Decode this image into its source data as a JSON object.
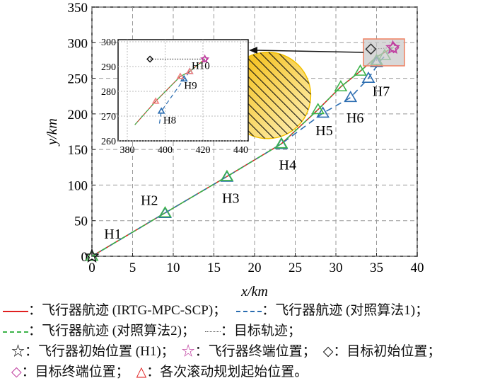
{
  "chart_data": {
    "type": "line",
    "xlabel": "x/km",
    "ylabel": "y/km",
    "xlim": [
      0,
      40
    ],
    "ylim": [
      0,
      350
    ],
    "xticks": [
      0,
      5,
      10,
      15,
      20,
      25,
      30,
      35,
      40
    ],
    "yticks": [
      0,
      50,
      100,
      150,
      200,
      250,
      300,
      350
    ],
    "grid": true,
    "series": [
      {
        "legend": "飞行器航迹 (IRTG-MPC-SCP)",
        "color": "#e02020",
        "style": "solid",
        "x": [
          0,
          9,
          16.6,
          23.3,
          27.8,
          30.6,
          33,
          35,
          37
        ],
        "y": [
          0,
          61,
          112,
          158,
          206,
          238,
          260,
          280,
          293
        ]
      },
      {
        "legend": "飞行器航迹 (对照算法1)",
        "color": "#2a6cb0",
        "style": "dashed",
        "x": [
          0,
          9,
          16.6,
          23.3,
          28.4,
          31.8,
          34,
          35.5,
          37
        ],
        "y": [
          0,
          61,
          112,
          158,
          201,
          223,
          250,
          275,
          293
        ]
      },
      {
        "legend": "飞行器航迹 (对照算法2)",
        "color": "#3cb34a",
        "style": "dashdot",
        "x": [
          0,
          9,
          16.6,
          23.3,
          27.8,
          30.6,
          33,
          35,
          37
        ],
        "y": [
          0,
          61,
          112,
          158,
          206,
          238,
          260,
          280,
          293
        ]
      },
      {
        "legend": "目标轨迹",
        "color": "#333333",
        "style": "dotted",
        "x": [
          34.3,
          37.1
        ],
        "y": [
          291,
          293
        ]
      }
    ],
    "horizon_points": {
      "green": [
        [
          0,
          0
        ],
        [
          9,
          61
        ],
        [
          16.6,
          112
        ],
        [
          23.3,
          158
        ],
        [
          27.8,
          206
        ],
        [
          30.6,
          238
        ],
        [
          33,
          260
        ],
        [
          35,
          275
        ],
        [
          36,
          282
        ]
      ],
      "blue": [
        [
          9,
          60
        ],
        [
          16.6,
          111
        ],
        [
          23.3,
          157
        ],
        [
          28.4,
          201
        ],
        [
          31.8,
          223
        ],
        [
          34,
          250
        ],
        [
          35,
          272
        ]
      ],
      "labels": [
        {
          "t": "H1",
          "x": 1.5,
          "y": 25
        },
        {
          "t": "H2",
          "x": 6,
          "y": 72
        },
        {
          "t": "H3",
          "x": 16,
          "y": 75
        },
        {
          "t": "H4",
          "x": 23,
          "y": 122
        },
        {
          "t": "H5",
          "x": 27.5,
          "y": 170
        },
        {
          "t": "H6",
          "x": 31.3,
          "y": 188
        },
        {
          "t": "H7",
          "x": 34.5,
          "y": 225
        }
      ]
    },
    "aircraft_start": [
      0,
      0
    ],
    "aircraft_end": [
      37,
      293
    ],
    "target_start": [
      34.3,
      291
    ],
    "target_end": [
      37.1,
      293
    ],
    "obstacle": {
      "center": [
        21.6,
        226
      ],
      "color": "#f5c000"
    },
    "inset": {
      "xlim": [
        380,
        440
      ],
      "ylim": [
        260,
        300
      ],
      "xticks": [
        380,
        400,
        420,
        440
      ],
      "yticks": [
        260,
        270,
        280,
        290,
        300
      ],
      "aircraft": {
        "x": [
          384,
          395,
          408,
          413,
          421
        ],
        "y": [
          266.5,
          276,
          286,
          288,
          293
        ]
      },
      "blue": {
        "x": [
          397,
          398,
          410,
          413,
          421
        ],
        "y": [
          267,
          272,
          285,
          288,
          293
        ]
      },
      "target": {
        "x": [
          392,
          421
        ],
        "y": [
          293,
          293
        ]
      },
      "green_pts": [
        [
          395,
          276
        ],
        [
          408,
          286
        ],
        [
          413,
          288
        ]
      ],
      "blue_pts": [
        [
          398,
          272
        ],
        [
          410,
          285
        ],
        [
          413,
          288
        ]
      ],
      "labels": [
        {
          "t": "H8",
          "x": 399,
          "y": 267
        },
        {
          "t": "H9",
          "x": 410,
          "y": 281
        },
        {
          "t": "H10",
          "x": 414,
          "y": 289
        }
      ]
    }
  },
  "legend": {
    "rows": [
      [
        {
          "sym": "red-line",
          "text": "：飞行器航迹 (IRTG-MPC-SCP)；"
        },
        {
          "sym": "blue-dash",
          "text": "：飞行器航迹 (对照算法1)；"
        }
      ],
      [
        {
          "sym": "green-dashdot",
          "text": "：飞行器航迹 (对照算法2)；"
        },
        {
          "sym": "dotted",
          "text": "：目标轨迹；"
        }
      ],
      [
        {
          "sym": "☆",
          "color": "#111",
          "text": "：飞行器初始位置 (H1)；"
        },
        {
          "sym": "☆",
          "color": "#c040a0",
          "text": "：飞行器终端位置；"
        },
        {
          "sym": "◇",
          "color": "#111",
          "text": "：目标初始位置；"
        }
      ],
      [
        {
          "sym": "◇",
          "color": "#c040a0",
          "text": "：目标终端位置；"
        },
        {
          "sym": "△",
          "color": "#e02020",
          "text": "：各次滚动规划起始位置。"
        }
      ]
    ]
  }
}
